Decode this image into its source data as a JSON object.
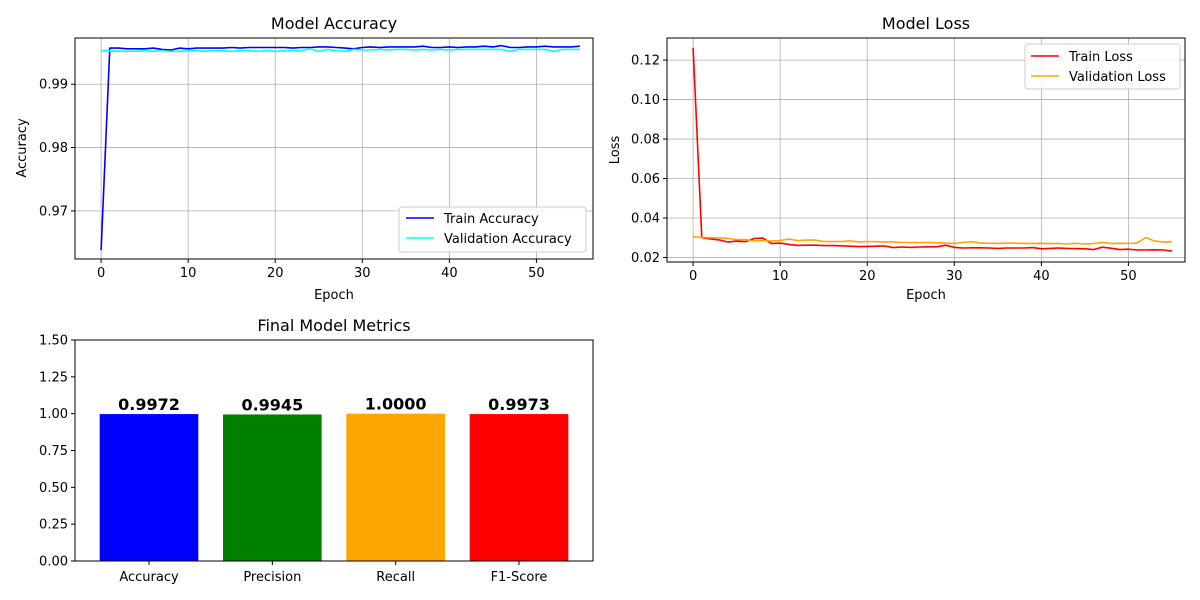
{
  "chart_data": [
    {
      "type": "line",
      "title": "Model Accuracy",
      "xlabel": "Epoch",
      "ylabel": "Accuracy",
      "xlim": [
        -3,
        56.5
      ],
      "ylim": [
        0.9624,
        0.9973
      ],
      "xticks": [
        0,
        10,
        20,
        30,
        40,
        50
      ],
      "yticks": [
        0.97,
        0.98,
        0.99
      ],
      "grid": true,
      "legend": "lower-right",
      "x": [
        0,
        1,
        2,
        3,
        4,
        5,
        6,
        7,
        8,
        9,
        10,
        11,
        12,
        13,
        14,
        15,
        16,
        17,
        18,
        19,
        20,
        21,
        22,
        23,
        24,
        25,
        26,
        27,
        28,
        29,
        30,
        31,
        32,
        33,
        34,
        35,
        36,
        37,
        38,
        39,
        40,
        41,
        42,
        43,
        44,
        45,
        46,
        47,
        48,
        49,
        50,
        51,
        52,
        53,
        54,
        55
      ],
      "series": [
        {
          "name": "Train Accuracy",
          "color": "#0000ff",
          "values": [
            0.9638,
            0.9957,
            0.9957,
            0.9956,
            0.9956,
            0.9956,
            0.9957,
            0.9955,
            0.9954,
            0.9957,
            0.9956,
            0.9957,
            0.9957,
            0.9957,
            0.9957,
            0.9958,
            0.9957,
            0.9958,
            0.9958,
            0.9958,
            0.9958,
            0.9958,
            0.9957,
            0.9958,
            0.9958,
            0.9959,
            0.9959,
            0.9958,
            0.9957,
            0.9956,
            0.9958,
            0.9959,
            0.9958,
            0.9959,
            0.9959,
            0.9959,
            0.9959,
            0.996,
            0.9958,
            0.9958,
            0.9959,
            0.9958,
            0.9959,
            0.9959,
            0.996,
            0.9959,
            0.9961,
            0.9958,
            0.9958,
            0.9959,
            0.9959,
            0.996,
            0.9959,
            0.9959,
            0.9959,
            0.996
          ]
        },
        {
          "name": "Validation Accuracy",
          "color": "#00ffff",
          "values": [
            0.9953,
            0.9953,
            0.9952,
            0.9952,
            0.9952,
            0.9953,
            0.9952,
            0.9953,
            0.9952,
            0.9952,
            0.9953,
            0.9953,
            0.9952,
            0.9953,
            0.9953,
            0.9952,
            0.9953,
            0.9953,
            0.9952,
            0.9953,
            0.9952,
            0.9953,
            0.9953,
            0.9953,
            0.9956,
            0.9952,
            0.9955,
            0.9953,
            0.9952,
            0.9955,
            0.9954,
            0.9954,
            0.9955,
            0.9954,
            0.9955,
            0.9955,
            0.9954,
            0.9955,
            0.9954,
            0.9955,
            0.9954,
            0.9955,
            0.9955,
            0.9955,
            0.9955,
            0.9955,
            0.9955,
            0.9952,
            0.9955,
            0.9955,
            0.9955,
            0.9955,
            0.9952,
            0.9955,
            0.9955,
            0.9955
          ]
        }
      ]
    },
    {
      "type": "line",
      "title": "Model Loss",
      "xlabel": "Epoch",
      "ylabel": "Loss",
      "xlim": [
        -3,
        56.5
      ],
      "ylim": [
        0.0177,
        0.1312
      ],
      "xticks": [
        0,
        10,
        20,
        30,
        40,
        50
      ],
      "yticks": [
        0.02,
        0.04,
        0.06,
        0.08,
        0.1,
        0.12
      ],
      "ytick_labels": [
        "0.02",
        "0.04",
        "0.06",
        "0.08",
        "0.10",
        "0.12"
      ],
      "grid": true,
      "legend": "upper-right",
      "x": [
        0,
        1,
        2,
        3,
        4,
        5,
        6,
        7,
        8,
        9,
        10,
        11,
        12,
        13,
        14,
        15,
        16,
        17,
        18,
        19,
        20,
        21,
        22,
        23,
        24,
        25,
        26,
        27,
        28,
        29,
        30,
        31,
        32,
        33,
        34,
        35,
        36,
        37,
        38,
        39,
        40,
        41,
        42,
        43,
        44,
        45,
        46,
        47,
        48,
        49,
        50,
        51,
        52,
        53,
        54,
        55
      ],
      "series": [
        {
          "name": "Train Loss",
          "color": "#ff0000",
          "values": [
            0.1263,
            0.03,
            0.0294,
            0.0289,
            0.0278,
            0.0283,
            0.028,
            0.0296,
            0.0298,
            0.027,
            0.0273,
            0.0266,
            0.0261,
            0.0262,
            0.0262,
            0.026,
            0.026,
            0.0259,
            0.0257,
            0.0255,
            0.0256,
            0.0257,
            0.0258,
            0.025,
            0.0253,
            0.0251,
            0.0253,
            0.0254,
            0.0254,
            0.0262,
            0.0251,
            0.0248,
            0.0249,
            0.0249,
            0.0248,
            0.0246,
            0.0248,
            0.0248,
            0.0248,
            0.025,
            0.0244,
            0.0246,
            0.0248,
            0.0246,
            0.0245,
            0.0244,
            0.024,
            0.0252,
            0.0247,
            0.024,
            0.0242,
            0.0238,
            0.0238,
            0.0239,
            0.0238,
            0.0232
          ]
        },
        {
          "name": "Validation Loss",
          "color": "#ffa500",
          "values": [
            0.0305,
            0.0302,
            0.03,
            0.0299,
            0.0297,
            0.029,
            0.0291,
            0.0283,
            0.0286,
            0.0283,
            0.0286,
            0.0293,
            0.0286,
            0.0288,
            0.0288,
            0.0281,
            0.0281,
            0.0281,
            0.0284,
            0.0279,
            0.0281,
            0.028,
            0.0279,
            0.0279,
            0.0276,
            0.0276,
            0.0276,
            0.0276,
            0.0275,
            0.0273,
            0.0271,
            0.0276,
            0.028,
            0.0273,
            0.0272,
            0.0271,
            0.0273,
            0.0273,
            0.0271,
            0.0271,
            0.0272,
            0.027,
            0.0271,
            0.0268,
            0.0272,
            0.0268,
            0.027,
            0.0276,
            0.0271,
            0.0272,
            0.0271,
            0.0273,
            0.0301,
            0.0283,
            0.0279,
            0.0279
          ]
        }
      ]
    },
    {
      "type": "bar",
      "title": "Final Model Metrics",
      "xlabel": "",
      "ylabel": "",
      "categories": [
        "Accuracy",
        "Precision",
        "Recall",
        "F1-Score"
      ],
      "values": [
        0.9972,
        0.9945,
        1.0,
        0.9973
      ],
      "data_labels": [
        "0.9972",
        "0.9945",
        "1.0000",
        "0.9973"
      ],
      "colors": [
        "#0000ff",
        "#008000",
        "#ffa500",
        "#ff0000"
      ],
      "ylim": [
        0,
        1.5
      ],
      "yticks": [
        0.0,
        0.25,
        0.5,
        0.75,
        1.0,
        1.25,
        1.5
      ],
      "ytick_labels": [
        "0.00",
        "0.25",
        "0.50",
        "0.75",
        "1.00",
        "1.25",
        "1.50"
      ],
      "grid": false
    }
  ]
}
